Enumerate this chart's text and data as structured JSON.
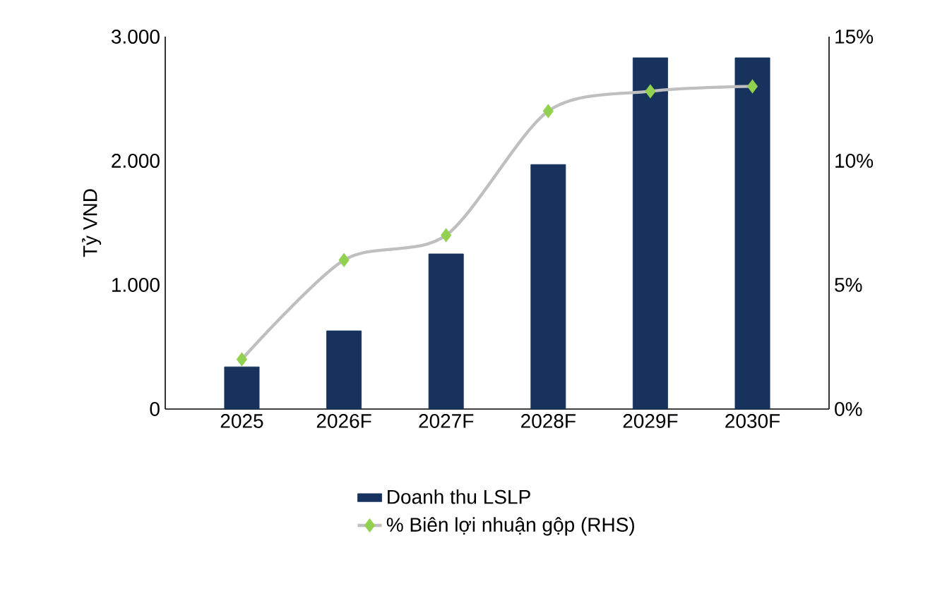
{
  "chart_data": {
    "type": "bar",
    "ylabel": "Tỷ VND",
    "categories": [
      "2025",
      "2026F",
      "2027F",
      "2028F",
      "2029F",
      "2030F"
    ],
    "series": [
      {
        "name": "Doanh thu LSLP",
        "color": "#17325c",
        "values": [
          340,
          630,
          1250,
          1970,
          2830,
          2830
        ]
      },
      {
        "name": "% Biên lợi nhuận gộp (RHS)",
        "type": "line",
        "axis": "y2",
        "color": "#bfbfbf",
        "marker": "diamond",
        "values": [
          2.0,
          6.0,
          7.0,
          12.0,
          12.8,
          13.0
        ]
      }
    ],
    "ylim": [
      0,
      3000
    ],
    "yticks": [
      {
        "value": 0,
        "label": "0"
      },
      {
        "value": 1000,
        "label": "1.000"
      },
      {
        "value": 2000,
        "label": "2.000"
      },
      {
        "value": 3000,
        "label": "3.000"
      }
    ],
    "y2lim": [
      0,
      15
    ],
    "y2ticks": [
      {
        "value": 0,
        "label": "0%"
      },
      {
        "value": 5,
        "label": "5%"
      },
      {
        "value": 10,
        "label": "10%"
      },
      {
        "value": 15,
        "label": "15%"
      }
    ],
    "grid": false,
    "legend": "bottom"
  }
}
